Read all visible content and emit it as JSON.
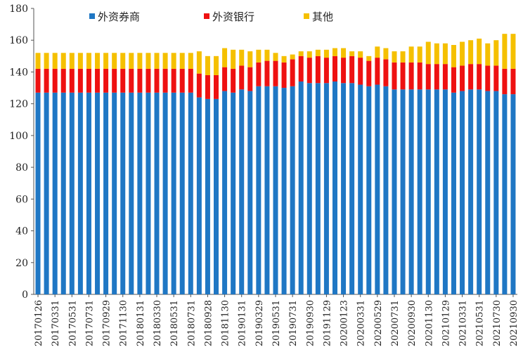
{
  "chart_data": {
    "type": "bar",
    "stacked": true,
    "ylim": [
      0,
      180
    ],
    "yticks": [
      0,
      20,
      40,
      60,
      80,
      100,
      120,
      140,
      160,
      180
    ],
    "grid": false,
    "legend_position": "top",
    "series": [
      {
        "name": "外资券商",
        "color": "#1f77c4"
      },
      {
        "name": "外资银行",
        "color": "#ee1111"
      },
      {
        "name": "其他",
        "color": "#f5c000"
      }
    ],
    "x_tick_labels": [
      "20170126",
      "20170331",
      "20170531",
      "20170731",
      "20170929",
      "20171130",
      "20180131",
      "20180330",
      "20180531",
      "20180731",
      "20180928",
      "20181130",
      "20190131",
      "20190329",
      "20190531",
      "20190731",
      "20190930",
      "20191129",
      "20200123",
      "20200331",
      "20200529",
      "20200731",
      "20200930",
      "20201130",
      "20210129",
      "20210331",
      "20210531",
      "20210730",
      "20210930"
    ],
    "tick_every": 2,
    "points": [
      [
        127,
        15,
        10
      ],
      [
        127,
        15,
        10
      ],
      [
        127,
        15,
        10
      ],
      [
        127,
        15,
        10
      ],
      [
        127,
        15,
        10
      ],
      [
        127,
        15,
        10
      ],
      [
        127,
        15,
        10
      ],
      [
        127,
        15,
        10
      ],
      [
        127,
        15,
        10
      ],
      [
        127,
        15,
        10
      ],
      [
        127,
        15,
        10
      ],
      [
        127,
        15,
        10
      ],
      [
        127,
        15,
        10
      ],
      [
        127,
        15,
        10
      ],
      [
        127,
        15,
        10
      ],
      [
        127,
        15,
        10
      ],
      [
        127,
        15,
        10
      ],
      [
        127,
        15,
        10
      ],
      [
        127,
        15,
        10
      ],
      [
        124,
        15,
        14
      ],
      [
        123,
        15,
        12
      ],
      [
        123,
        15,
        12
      ],
      [
        128,
        15,
        12
      ],
      [
        127,
        15,
        12
      ],
      [
        129,
        15,
        10
      ],
      [
        128,
        15,
        10
      ],
      [
        131,
        15,
        8
      ],
      [
        131,
        16,
        7
      ],
      [
        131,
        16,
        5
      ],
      [
        130,
        16,
        4
      ],
      [
        131,
        17,
        3
      ],
      [
        134,
        16,
        3
      ],
      [
        133,
        16,
        4
      ],
      [
        133,
        17,
        4
      ],
      [
        133,
        16,
        5
      ],
      [
        134,
        16,
        5
      ],
      [
        133,
        16,
        6
      ],
      [
        133,
        17,
        3
      ],
      [
        132,
        17,
        4
      ],
      [
        131,
        16,
        3
      ],
      [
        132,
        17,
        7
      ],
      [
        131,
        17,
        7
      ],
      [
        129,
        17,
        7
      ],
      [
        129,
        17,
        7
      ],
      [
        129,
        17,
        10
      ],
      [
        129,
        17,
        10
      ],
      [
        129,
        16,
        14
      ],
      [
        129,
        16,
        13
      ],
      [
        129,
        16,
        13
      ],
      [
        127,
        16,
        14
      ],
      [
        128,
        16,
        15
      ],
      [
        129,
        16,
        15
      ],
      [
        129,
        16,
        16
      ],
      [
        128,
        16,
        14
      ],
      [
        128,
        16,
        16
      ],
      [
        126,
        16,
        22
      ],
      [
        126,
        16,
        22
      ]
    ]
  }
}
